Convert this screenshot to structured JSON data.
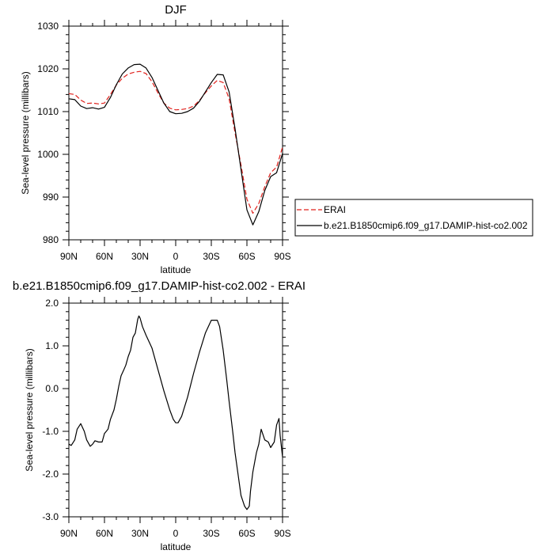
{
  "colors": {
    "model": "#000000",
    "obs": "#e0201b"
  },
  "chart_data": [
    {
      "type": "line",
      "title": "DJF",
      "xlabel": "latitude",
      "ylabel": "Sea-level pressure (millibars)",
      "xlim": [
        90,
        -90
      ],
      "ylim": [
        980,
        1030
      ],
      "xticks": [
        90,
        60,
        30,
        0,
        -30,
        -60,
        -90
      ],
      "xtick_labels": [
        "90N",
        "60N",
        "30N",
        "0",
        "30S",
        "60S",
        "90S"
      ],
      "yticks": [
        980,
        990,
        1000,
        1010,
        1020,
        1030
      ],
      "ytick_labels": [
        "980",
        "990",
        "1000",
        "1010",
        "1020",
        "1030"
      ],
      "legend": "right",
      "series": [
        {
          "name": "ERAI",
          "style": "dashed",
          "color": "#e0201b",
          "x": [
            90,
            85,
            80,
            75,
            70,
            65,
            60,
            55,
            50,
            45,
            40,
            35,
            30,
            25,
            20,
            15,
            10,
            5,
            0,
            -5,
            -10,
            -15,
            -20,
            -25,
            -30,
            -35,
            -40,
            -45,
            -50,
            -55,
            -60,
            -65,
            -70,
            -75,
            -80,
            -85,
            -90
          ],
          "values": [
            1014.2,
            1014.0,
            1012.7,
            1011.9,
            1012.0,
            1011.8,
            1012.0,
            1014.0,
            1016.2,
            1017.8,
            1018.8,
            1019.2,
            1019.4,
            1018.9,
            1017.0,
            1014.4,
            1012.0,
            1010.8,
            1010.4,
            1010.5,
            1010.7,
            1011.3,
            1012.6,
            1014.4,
            1016.0,
            1017.3,
            1016.8,
            1013.0,
            1005.0,
            997.5,
            989.5,
            986.2,
            988.5,
            992.4,
            995.7,
            997.0,
            1001.7
          ]
        },
        {
          "name": "b.e21.B1850cmip6.f09_g17.DAMIP-hist-co2.002",
          "style": "solid",
          "color": "#000000",
          "x": [
            90,
            85,
            80,
            75,
            70,
            65,
            60,
            55,
            50,
            45,
            40,
            35,
            30,
            25,
            20,
            15,
            10,
            5,
            0,
            -5,
            -10,
            -15,
            -20,
            -25,
            -30,
            -35,
            -40,
            -45,
            -50,
            -55,
            -60,
            -65,
            -70,
            -75,
            -80,
            -85,
            -90
          ],
          "values": [
            1013.0,
            1012.8,
            1011.3,
            1010.7,
            1010.9,
            1010.6,
            1011.0,
            1013.3,
            1016.3,
            1018.8,
            1020.2,
            1021.0,
            1021.1,
            1020.2,
            1018.0,
            1015.0,
            1012.0,
            1010.0,
            1009.5,
            1009.6,
            1010.0,
            1010.8,
            1012.4,
            1014.6,
            1016.8,
            1018.7,
            1018.6,
            1014.6,
            1006.0,
            996.5,
            987.0,
            983.5,
            986.6,
            991.5,
            994.8,
            995.7,
            1000.2
          ]
        }
      ]
    },
    {
      "type": "line",
      "title": "b.e21.B1850cmip6.f09_g17.DAMIP-hist-co2.002 - ERAI",
      "xlabel": "latitude",
      "ylabel": "Sea-level pressure (millibars)",
      "xlim": [
        90,
        -90
      ],
      "ylim": [
        -3.0,
        2.0
      ],
      "xticks": [
        90,
        60,
        30,
        0,
        -30,
        -60,
        -90
      ],
      "xtick_labels": [
        "90N",
        "60N",
        "30N",
        "0",
        "30S",
        "60S",
        "90S"
      ],
      "yticks": [
        -3.0,
        -2.0,
        -1.0,
        0.0,
        1.0,
        2.0
      ],
      "ytick_labels": [
        "-3.0",
        "-2.0",
        "-1.0",
        "0.0",
        "1.0",
        "2.0"
      ],
      "series": [
        {
          "name": "",
          "style": "solid",
          "color": "#000000",
          "x": [
            90,
            88,
            85,
            83,
            80,
            77,
            75,
            72,
            70,
            68,
            65,
            62,
            60,
            57,
            55,
            52,
            50,
            48,
            46,
            44,
            42,
            40,
            38,
            36,
            34,
            32,
            31,
            30,
            28,
            25,
            20,
            15,
            10,
            5,
            2,
            0,
            -2,
            -5,
            -10,
            -15,
            -20,
            -25,
            -30,
            -35,
            -37,
            -40,
            -43,
            -45,
            -48,
            -50,
            -53,
            -55,
            -58,
            -60,
            -62,
            -63,
            -65,
            -68,
            -70,
            -72,
            -75,
            -78,
            -80,
            -83,
            -85,
            -87,
            -88,
            -90
          ],
          "values": [
            -1.3,
            -1.33,
            -1.2,
            -0.95,
            -0.82,
            -1.0,
            -1.2,
            -1.35,
            -1.3,
            -1.22,
            -1.25,
            -1.25,
            -1.05,
            -0.95,
            -0.72,
            -0.5,
            -0.25,
            0.05,
            0.3,
            0.42,
            0.55,
            0.75,
            0.9,
            1.2,
            1.3,
            1.62,
            1.7,
            1.65,
            1.45,
            1.25,
            0.95,
            0.45,
            -0.05,
            -0.5,
            -0.72,
            -0.8,
            -0.8,
            -0.65,
            -0.2,
            0.35,
            0.85,
            1.3,
            1.6,
            1.6,
            1.45,
            0.9,
            0.2,
            -0.3,
            -1.0,
            -1.5,
            -2.1,
            -2.5,
            -2.75,
            -2.83,
            -2.75,
            -2.4,
            -1.95,
            -1.5,
            -1.3,
            -0.95,
            -1.2,
            -1.25,
            -1.38,
            -1.25,
            -0.85,
            -0.7,
            -1.1,
            -1.6
          ]
        }
      ]
    }
  ]
}
